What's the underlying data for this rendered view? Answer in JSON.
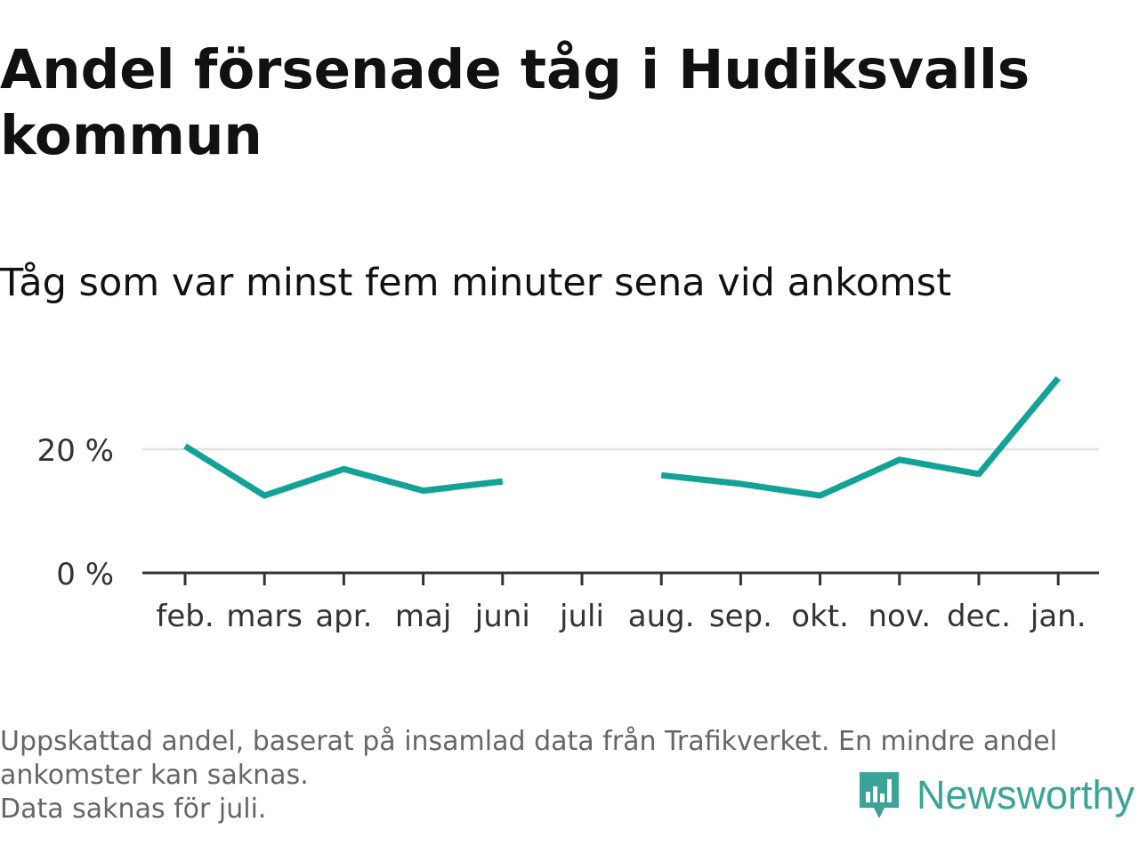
{
  "title": "Andel försenade tåg i Hudiksvalls kommun",
  "subtitle": "Tåg som var minst fem minuter sena vid ankomst",
  "chart_data": {
    "type": "line",
    "categories": [
      "feb.",
      "mars",
      "apr.",
      "maj",
      "juni",
      "juli",
      "aug.",
      "sep.",
      "okt.",
      "nov.",
      "dec.",
      "jan."
    ],
    "series": [
      {
        "values": [
          20.5,
          12.5,
          16.8,
          13.3,
          14.8,
          null,
          15.8,
          14.4,
          12.5,
          18.3,
          16.0,
          31.5
        ]
      }
    ],
    "yticks": [
      {
        "value": 0,
        "label": "0 %"
      },
      {
        "value": 20,
        "label": "20 %"
      }
    ],
    "ylim": [
      0,
      35
    ],
    "grid": "horizontal",
    "line_color": "#12a396",
    "grid_color": "#e0e0e0",
    "axis_color": "#333333",
    "xlabel": "",
    "ylabel": ""
  },
  "footnote": {
    "line1": "Uppskattad andel, baserat på insamlad data från Trafikverket. En mindre andel ankomster kan saknas.",
    "line2": "Data saknas för juli."
  },
  "logo": {
    "text": "Newsworthy",
    "icon": "newsworthy-bar-chart-icon",
    "color": "#3aa597"
  }
}
